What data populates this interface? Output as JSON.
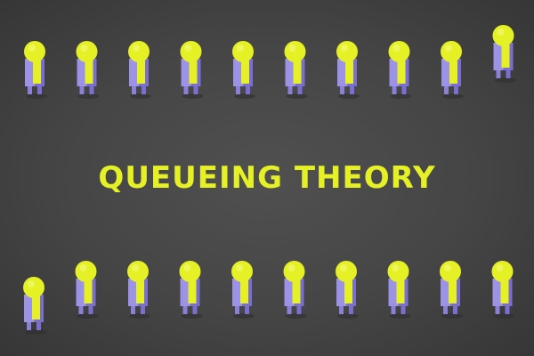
{
  "title": "QUEUEING THEORY",
  "colors": {
    "accent": "#e5f125",
    "figure_body_left": "#9c93e6",
    "figure_body_right": "#7a6fd0",
    "figure_head": "#e5f125",
    "figure_legs": "#8a80d8",
    "background": "#454545"
  },
  "queues": [
    {
      "name": "top-queue",
      "figure_count": 10,
      "raised_positions": [
        10
      ]
    },
    {
      "name": "bottom-queue",
      "figure_count": 10,
      "lowered_positions": [
        1
      ]
    }
  ]
}
